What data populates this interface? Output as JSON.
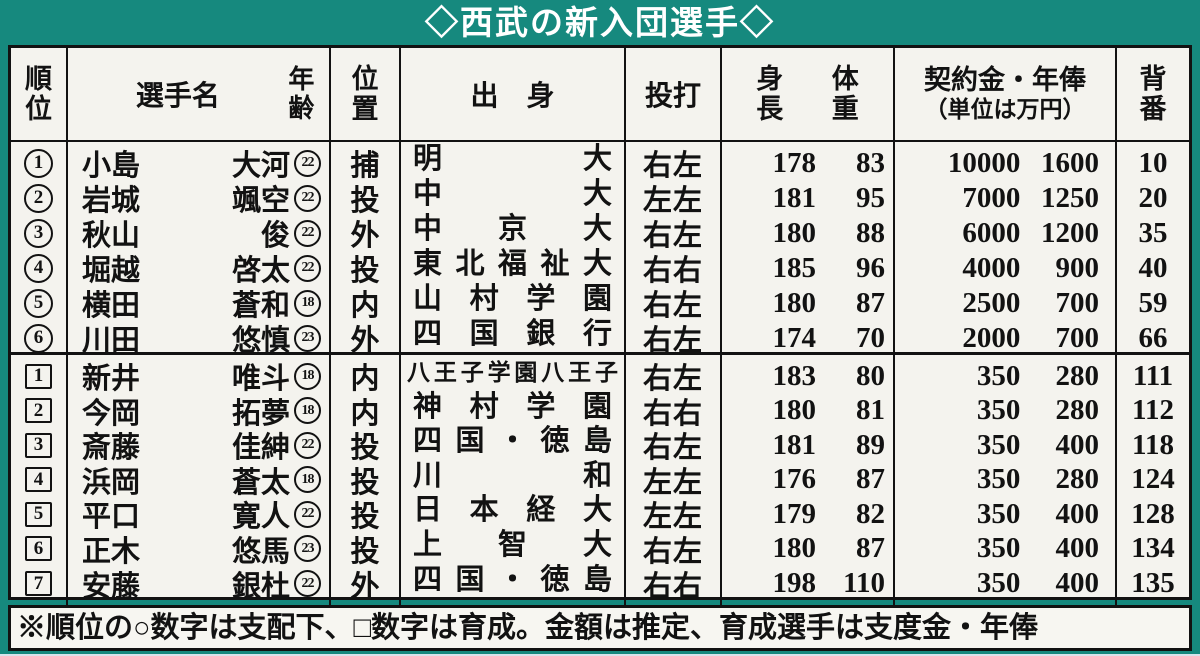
{
  "title": "◇西武の新入団選手◇",
  "colors": {
    "teal": "#16897e",
    "paper": "#f4f3ee",
    "ink": "#121212",
    "title_text": "#ffffff"
  },
  "header": {
    "rank": "順位",
    "name": "選手名",
    "age": "年齢",
    "position": "位置",
    "origin": "出　身",
    "throw_bat": "投打",
    "height": "身長",
    "weight": "体重",
    "money_line1": "契約金・年俸",
    "money_line2": "（単位は万円）",
    "number": "背番"
  },
  "sections": [
    {
      "id": "draft",
      "rank_shape": "circle",
      "rows": [
        {
          "rank": "1",
          "surname": "小島",
          "given": "大河",
          "age": "22",
          "position": "捕",
          "origin": "明大",
          "throw_bat": "右左",
          "height": "178",
          "weight": "83",
          "money": "10000",
          "salary": "1600",
          "number": "10"
        },
        {
          "rank": "2",
          "surname": "岩城",
          "given": "颯空",
          "age": "22",
          "position": "投",
          "origin": "中大",
          "throw_bat": "左左",
          "height": "181",
          "weight": "95",
          "money": "7000",
          "salary": "1250",
          "number": "20"
        },
        {
          "rank": "3",
          "surname": "秋山",
          "given": "俊",
          "age": "22",
          "position": "外",
          "origin": "中京大",
          "throw_bat": "右左",
          "height": "180",
          "weight": "88",
          "money": "6000",
          "salary": "1200",
          "number": "35"
        },
        {
          "rank": "4",
          "surname": "堀越",
          "given": "啓太",
          "age": "22",
          "position": "投",
          "origin": "東北福祉大",
          "throw_bat": "右右",
          "height": "185",
          "weight": "96",
          "money": "4000",
          "salary": "900",
          "number": "40"
        },
        {
          "rank": "5",
          "surname": "横田",
          "given": "蒼和",
          "age": "18",
          "position": "内",
          "origin": "山村学園",
          "throw_bat": "右左",
          "height": "180",
          "weight": "87",
          "money": "2500",
          "salary": "700",
          "number": "59"
        },
        {
          "rank": "6",
          "surname": "川田",
          "given": "悠慎",
          "age": "23",
          "position": "外",
          "origin": "四国銀行",
          "throw_bat": "右左",
          "height": "174",
          "weight": "70",
          "money": "2000",
          "salary": "700",
          "number": "66"
        }
      ]
    },
    {
      "id": "ikusei",
      "rank_shape": "square",
      "rows": [
        {
          "rank": "1",
          "surname": "新井",
          "given": "唯斗",
          "age": "18",
          "position": "内",
          "origin": "八王子学園八王子",
          "origin_small": true,
          "throw_bat": "右左",
          "height": "183",
          "weight": "80",
          "money": "350",
          "salary": "280",
          "number": "111"
        },
        {
          "rank": "2",
          "surname": "今岡",
          "given": "拓夢",
          "age": "18",
          "position": "内",
          "origin": "神村学園",
          "throw_bat": "右右",
          "height": "180",
          "weight": "81",
          "money": "350",
          "salary": "280",
          "number": "112"
        },
        {
          "rank": "3",
          "surname": "斎藤",
          "given": "佳紳",
          "age": "22",
          "position": "投",
          "origin": "四国・徳島",
          "throw_bat": "右左",
          "height": "181",
          "weight": "89",
          "money": "350",
          "salary": "400",
          "number": "118"
        },
        {
          "rank": "4",
          "surname": "浜岡",
          "given": "蒼太",
          "age": "18",
          "position": "投",
          "origin": "川和",
          "throw_bat": "左左",
          "height": "176",
          "weight": "87",
          "money": "350",
          "salary": "280",
          "number": "124"
        },
        {
          "rank": "5",
          "surname": "平口",
          "given": "寛人",
          "age": "22",
          "position": "投",
          "origin": "日本経大",
          "throw_bat": "左左",
          "height": "179",
          "weight": "82",
          "money": "350",
          "salary": "400",
          "number": "128"
        },
        {
          "rank": "6",
          "surname": "正木",
          "given": "悠馬",
          "age": "23",
          "position": "投",
          "origin": "上智大",
          "throw_bat": "右左",
          "height": "180",
          "weight": "87",
          "money": "350",
          "salary": "400",
          "number": "134"
        },
        {
          "rank": "7",
          "surname": "安藤",
          "given": "銀杜",
          "age": "22",
          "position": "外",
          "origin": "四国・徳島",
          "throw_bat": "右右",
          "height": "198",
          "weight": "110",
          "money": "350",
          "salary": "400",
          "number": "135"
        }
      ]
    }
  ],
  "note": "※順位の○数字は支配下、□数字は育成。金額は推定、育成選手は支度金・年俸"
}
